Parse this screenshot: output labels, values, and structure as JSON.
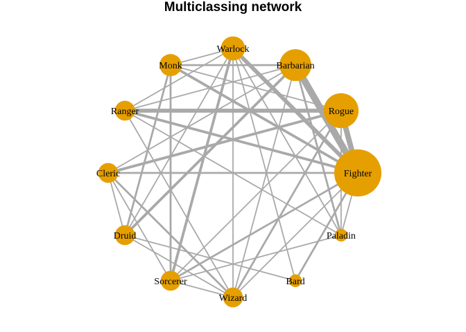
{
  "title": "Multiclassing network",
  "colors": {
    "node": "#e69f00",
    "edge": "#a9a9a9",
    "label": "#000000"
  },
  "nodes": [
    {
      "id": "Warlock",
      "label": "Warlock",
      "size": 2
    },
    {
      "id": "Barbarian",
      "label": "Barbarian",
      "size": 4
    },
    {
      "id": "Rogue",
      "label": "Rogue",
      "size": 5
    },
    {
      "id": "Fighter",
      "label": "Fighter",
      "size": 10
    },
    {
      "id": "Paladin",
      "label": "Paladin",
      "size": 0.3
    },
    {
      "id": "Bard",
      "label": "Bard",
      "size": 0.3
    },
    {
      "id": "Wizard",
      "label": "Wizard",
      "size": 1.2
    },
    {
      "id": "Sorcerer",
      "label": "Sorcerer",
      "size": 1.2
    },
    {
      "id": "Druid",
      "label": "Druid",
      "size": 1.2
    },
    {
      "id": "Cleric",
      "label": "Cleric",
      "size": 1.2
    },
    {
      "id": "Ranger",
      "label": "Ranger",
      "size": 1.2
    },
    {
      "id": "Monk",
      "label": "Monk",
      "size": 1.6
    }
  ],
  "edges": [
    {
      "source": "Barbarian",
      "target": "Fighter",
      "weight": 9
    },
    {
      "source": "Rogue",
      "target": "Fighter",
      "weight": 7
    },
    {
      "source": "Warlock",
      "target": "Fighter",
      "weight": 5
    },
    {
      "source": "Ranger",
      "target": "Rogue",
      "weight": 5
    },
    {
      "source": "Cleric",
      "target": "Rogue",
      "weight": 3
    },
    {
      "source": "Monk",
      "target": "Fighter",
      "weight": 3
    },
    {
      "source": "Ranger",
      "target": "Fighter",
      "weight": 3
    },
    {
      "source": "Warlock",
      "target": "Sorcerer",
      "weight": 3
    },
    {
      "source": "Druid",
      "target": "Barbarian",
      "weight": 3
    },
    {
      "source": "Monk",
      "target": "Barbarian",
      "weight": 2
    },
    {
      "source": "Monk",
      "target": "Sorcerer",
      "weight": 2
    },
    {
      "source": "Monk",
      "target": "Druid",
      "weight": 2
    },
    {
      "source": "Cleric",
      "target": "Fighter",
      "weight": 2
    },
    {
      "source": "Cleric",
      "target": "Wizard",
      "weight": 2
    },
    {
      "source": "Wizard",
      "target": "Rogue",
      "weight": 2
    },
    {
      "source": "Sorcerer",
      "target": "Fighter",
      "weight": 2
    },
    {
      "source": "Barbarian",
      "target": "Paladin",
      "weight": 2
    },
    {
      "source": "Fighter",
      "target": "Bard",
      "weight": 2
    },
    {
      "source": "Monk",
      "target": "Rogue",
      "weight": 1
    },
    {
      "source": "Monk",
      "target": "Warlock",
      "weight": 1
    },
    {
      "source": "Warlock",
      "target": "Ranger",
      "weight": 1
    },
    {
      "source": "Warlock",
      "target": "Druid",
      "weight": 1
    },
    {
      "source": "Warlock",
      "target": "Wizard",
      "weight": 1
    },
    {
      "source": "Warlock",
      "target": "Paladin",
      "weight": 1
    },
    {
      "source": "Warlock",
      "target": "Bard",
      "weight": 1
    },
    {
      "source": "Barbarian",
      "target": "Ranger",
      "weight": 1
    },
    {
      "source": "Barbarian",
      "target": "Cleric",
      "weight": 1
    },
    {
      "source": "Barbarian",
      "target": "Wizard",
      "weight": 1
    },
    {
      "source": "Rogue",
      "target": "Sorcerer",
      "weight": 1
    },
    {
      "source": "Rogue",
      "target": "Paladin",
      "weight": 1
    },
    {
      "source": "Fighter",
      "target": "Wizard",
      "weight": 1
    },
    {
      "source": "Fighter",
      "target": "Paladin",
      "weight": 1
    },
    {
      "source": "Ranger",
      "target": "Wizard",
      "weight": 1
    },
    {
      "source": "Ranger",
      "target": "Paladin",
      "weight": 1
    },
    {
      "source": "Cleric",
      "target": "Druid",
      "weight": 1
    },
    {
      "source": "Cleric",
      "target": "Sorcerer",
      "weight": 1
    },
    {
      "source": "Druid",
      "target": "Wizard",
      "weight": 1
    },
    {
      "source": "Druid",
      "target": "Bard",
      "weight": 1
    },
    {
      "source": "Sorcerer",
      "target": "Wizard",
      "weight": 1
    },
    {
      "source": "Sorcerer",
      "target": "Paladin",
      "weight": 1
    }
  ]
}
